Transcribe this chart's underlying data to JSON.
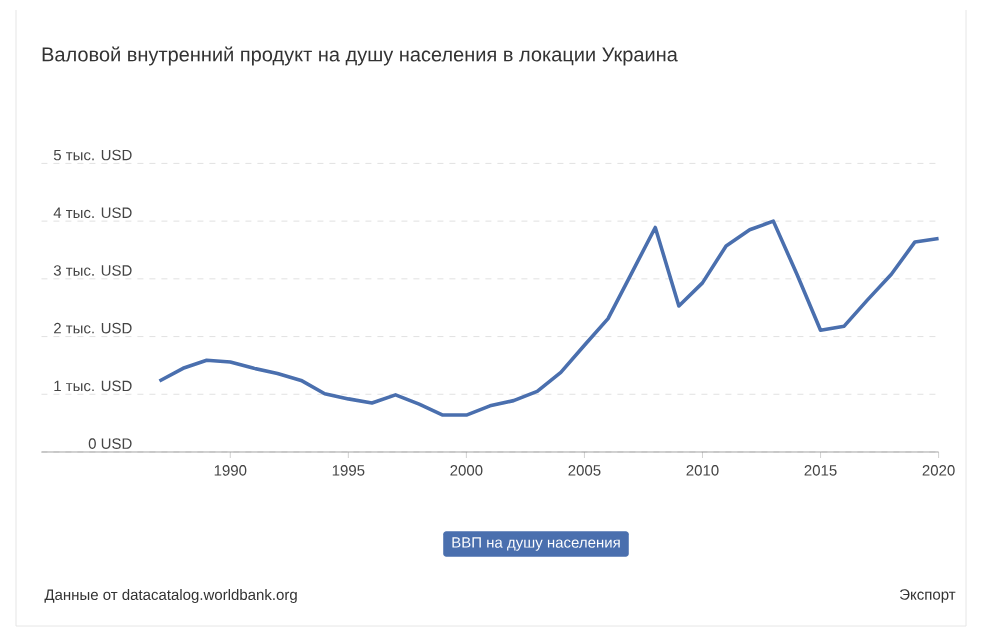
{
  "chart_data": {
    "type": "line",
    "title": "Валовой внутренний продукт на душу населения в локации Украина",
    "x": [
      1987,
      1988,
      1989,
      1990,
      1991,
      1992,
      1993,
      1994,
      1995,
      1996,
      1997,
      1998,
      1999,
      2000,
      2001,
      2002,
      2003,
      2004,
      2005,
      2006,
      2007,
      2008,
      2009,
      2010,
      2011,
      2012,
      2013,
      2014,
      2015,
      2016,
      2017,
      2018,
      2019,
      2020
    ],
    "series": [
      {
        "name": "ВВП на душу населения",
        "color": "#4a6fae",
        "values": [
          1.23,
          1.45,
          1.59,
          1.56,
          1.45,
          1.36,
          1.24,
          1.01,
          0.92,
          0.85,
          0.99,
          0.83,
          0.64,
          0.64,
          0.8,
          0.89,
          1.05,
          1.38,
          1.85,
          2.31,
          3.1,
          3.89,
          2.53,
          2.93,
          3.57,
          3.85,
          4.0,
          3.08,
          2.11,
          2.18,
          2.64,
          3.08,
          3.64,
          3.7
        ]
      }
    ],
    "xlim": [
      1982,
      2020
    ],
    "xticks": [
      1990,
      1995,
      2000,
      2005,
      2010,
      2015,
      2020
    ],
    "ylim": [
      0,
      5
    ],
    "yticks": [
      {
        "value": 0,
        "label": "0 USD"
      },
      {
        "value": 1,
        "label": "1 тыс. USD"
      },
      {
        "value": 2,
        "label": "2 тыс. USD"
      },
      {
        "value": 3,
        "label": "3 тыс. USD"
      },
      {
        "value": 4,
        "label": "4 тыс. USD"
      },
      {
        "value": 5,
        "label": "5 тыс. USD"
      }
    ],
    "grid": "y",
    "legend": "bottom",
    "annotations": [
      "Данные от datacatalog.worldbank.org",
      "Экспорт"
    ]
  }
}
